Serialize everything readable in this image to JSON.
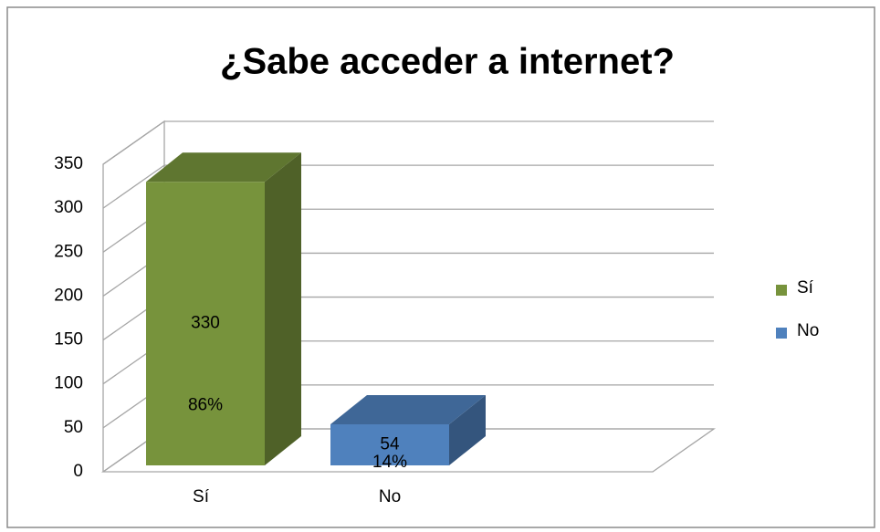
{
  "chart_data": {
    "type": "bar3d",
    "title": "¿Sabe acceder a internet?",
    "categories": [
      "Sí",
      "No"
    ],
    "values": [
      330,
      54
    ],
    "percent_labels": [
      "86%",
      "14%"
    ],
    "colors": [
      "#77933c",
      "#4f81bd"
    ],
    "ylim": [
      0,
      350
    ],
    "yticks": [
      0,
      50,
      100,
      150,
      200,
      250,
      300,
      350
    ],
    "grid": true,
    "legend": "right"
  }
}
